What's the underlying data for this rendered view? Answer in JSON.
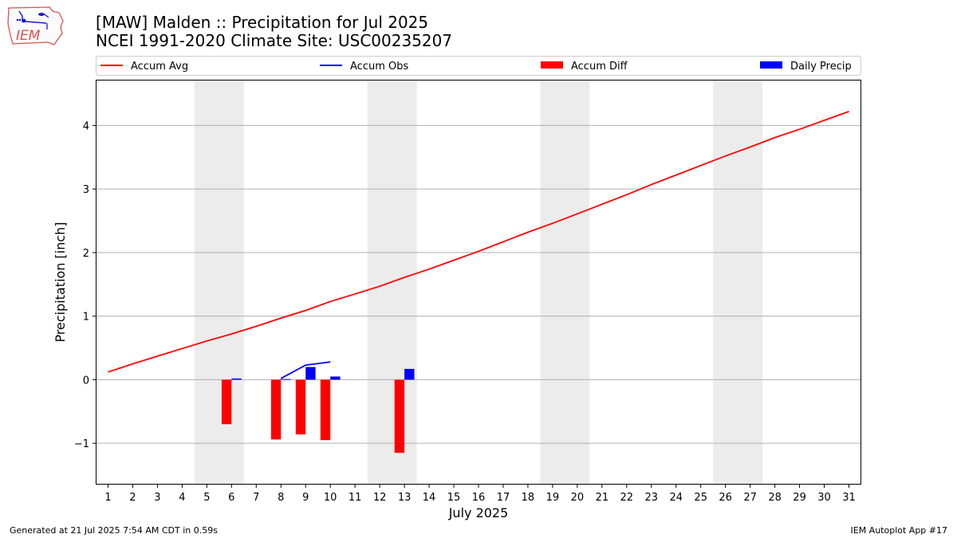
{
  "header": {
    "title_line1": "[MAW] Malden :: Precipitation for Jul 2025",
    "title_line2": "NCEI 1991-2020 Climate Site: USC00235207"
  },
  "logo": {
    "text": "IEM"
  },
  "footer": {
    "left": "Generated at 21 Jul 2025 7:54 AM CDT in 0.59s",
    "right": "IEM Autoplot App #17"
  },
  "colors": {
    "avg": "#ff0000",
    "obs": "#0000ff",
    "diff": "#ff0000",
    "daily": "#0000ff",
    "weekend": "#ececec",
    "grid": "#b0b0b0"
  },
  "chart_data": {
    "type": "line",
    "title": "[MAW] Malden :: Precipitation for Jul 2025",
    "subtitle": "NCEI 1991-2020 Climate Site: USC00235207",
    "xlabel": "July 2025",
    "ylabel": "Precipitation [inch]",
    "x": [
      1,
      2,
      3,
      4,
      5,
      6,
      7,
      8,
      9,
      10,
      11,
      12,
      13,
      14,
      15,
      16,
      17,
      18,
      19,
      20,
      21,
      22,
      23,
      24,
      25,
      26,
      27,
      28,
      29,
      30,
      31
    ],
    "xlim": [
      0.5,
      31.5
    ],
    "ylim": [
      -1.65,
      4.72
    ],
    "yticks": [
      4,
      3,
      2,
      1,
      0,
      -1
    ],
    "ytick_labels": [
      "4",
      "3",
      "2",
      "1",
      "0",
      "−1"
    ],
    "grid": "horizontal",
    "legend_position": "top",
    "legend": [
      "Accum Avg",
      "Accum Obs",
      "Accum Diff",
      "Daily Precip"
    ],
    "weekend_bands": [
      [
        4.5,
        6.5
      ],
      [
        11.5,
        13.5
      ],
      [
        18.5,
        20.5
      ],
      [
        25.5,
        27.5
      ]
    ],
    "series": [
      {
        "name": "Accum Avg",
        "kind": "line",
        "x": [
          1,
          2,
          3,
          4,
          5,
          6,
          7,
          8,
          9,
          10,
          11,
          12,
          13,
          14,
          15,
          16,
          17,
          18,
          19,
          20,
          21,
          22,
          23,
          24,
          25,
          26,
          27,
          28,
          29,
          30,
          31
        ],
        "values": [
          0.12,
          0.25,
          0.37,
          0.49,
          0.61,
          0.72,
          0.84,
          0.97,
          1.09,
          1.23,
          1.35,
          1.47,
          1.61,
          1.74,
          1.88,
          2.02,
          2.17,
          2.32,
          2.46,
          2.61,
          2.76,
          2.91,
          3.07,
          3.22,
          3.37,
          3.52,
          3.66,
          3.81,
          3.94,
          4.08,
          4.22
        ]
      },
      {
        "name": "Accum Obs",
        "kind": "line",
        "x": [
          8,
          9,
          10
        ],
        "values": [
          0.02,
          0.23,
          0.28
        ]
      },
      {
        "name": "Accum Diff",
        "kind": "bar",
        "x": [
          6,
          8,
          9,
          10,
          13
        ],
        "values": [
          -0.7,
          -0.94,
          -0.86,
          -0.95,
          -1.15
        ]
      },
      {
        "name": "Daily Precip",
        "kind": "bar",
        "x": [
          6,
          8,
          9,
          10,
          13
        ],
        "values": [
          0.02,
          0.01,
          0.2,
          0.05,
          0.17
        ]
      }
    ]
  }
}
